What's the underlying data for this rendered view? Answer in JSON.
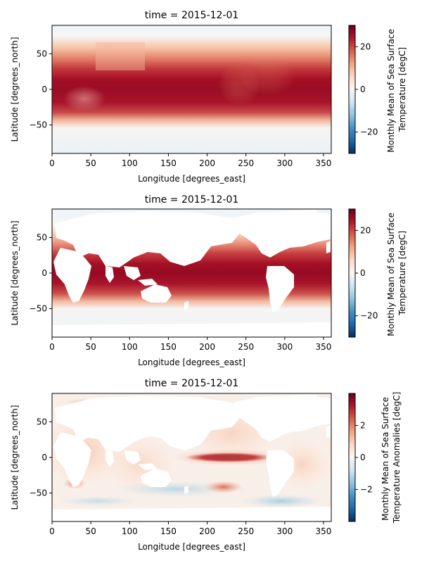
{
  "chart_data": [
    {
      "type": "heatmap",
      "title": "time = 2015-12-01",
      "xlabel": "Longitude [degrees_east]",
      "ylabel": "Latitude [degrees_north]",
      "xlim": [
        0,
        360
      ],
      "ylim": [
        -90,
        90
      ],
      "xticks": [
        "0",
        "50",
        "100",
        "150",
        "200",
        "250",
        "300",
        "350"
      ],
      "yticks": [
        "-50",
        "0",
        "50"
      ],
      "colorbar": {
        "label_lines": [
          "Monthly Mean of Sea Surface",
          "Temperature [degC]"
        ],
        "range": [
          -30,
          30
        ],
        "ticks": [
          "-20",
          "0",
          "20"
        ],
        "colormap": "RdBu_r"
      },
      "variant": "filled"
    },
    {
      "type": "heatmap",
      "title": "time = 2015-12-01",
      "xlabel": "Longitude [degrees_east]",
      "ylabel": "Latitude [degrees_north]",
      "xlim": [
        0,
        360
      ],
      "ylim": [
        -90,
        90
      ],
      "xticks": [
        "0",
        "50",
        "100",
        "150",
        "200",
        "250",
        "300",
        "350"
      ],
      "yticks": [
        "-50",
        "0",
        "50"
      ],
      "colorbar": {
        "label_lines": [
          "Monthly Mean of Sea Surface",
          "Temperature [degC]"
        ],
        "range": [
          -30,
          30
        ],
        "ticks": [
          "-20",
          "0",
          "20"
        ],
        "colormap": "RdBu_r"
      },
      "variant": "masked"
    },
    {
      "type": "heatmap",
      "title": "time = 2015-12-01",
      "xlabel": "Longitude [degrees_east]",
      "ylabel": "Latitude [degrees_north]",
      "xlim": [
        0,
        360
      ],
      "ylim": [
        -90,
        90
      ],
      "xticks": [
        "0",
        "50",
        "100",
        "150",
        "200",
        "250",
        "300",
        "350"
      ],
      "yticks": [
        "-50",
        "0",
        "50"
      ],
      "colorbar": {
        "label_lines": [
          "Monthly Mean of Sea Surface",
          "Temperature Anomalies [degC]"
        ],
        "range": [
          -4,
          4
        ],
        "ticks": [
          "-2",
          "0",
          "2"
        ],
        "colormap": "RdBu_r"
      },
      "variant": "anomaly"
    }
  ]
}
